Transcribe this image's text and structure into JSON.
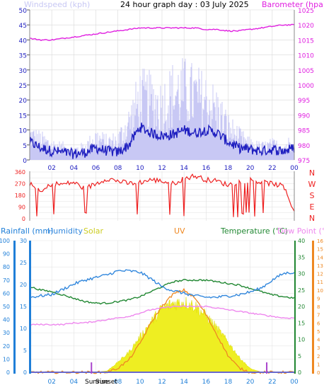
{
  "header": {
    "title": "24 hour graph day : 03 July 2025",
    "windspeed_label": "Windspeed (kph)",
    "barometer_label": "Barometer (hpa)"
  },
  "legend2": {
    "rainfall": "Rainfall (mm)",
    "humidity": "Humidity",
    "solar": "Solar",
    "uv": "UV",
    "temperature": "Temperature (°C)",
    "dewpoint": "Dew Point (°C)"
  },
  "sun": {
    "sunrise": "Sunrise",
    "sunset": "Sunset"
  },
  "colors": {
    "wind_avg": "#2020c0",
    "wind_gust": "#c8c8f4",
    "barometer": "#e020e0",
    "direction": "#ee2020",
    "humidity": "#3388dd",
    "solar_fill": "#eeee22",
    "uv": "#ee8822",
    "temperature": "#228833",
    "dewpoint": "#ee88ee",
    "rain_axis": "#1f7fd8",
    "marker": "#aa44cc"
  },
  "chart_data": [
    {
      "type": "line",
      "title": "24 hour graph day : 03 July 2025",
      "x_ticks": [
        "02",
        "04",
        "06",
        "08",
        "10",
        "12",
        "14",
        "16",
        "18",
        "20",
        "22",
        "00"
      ],
      "ylabel_left": "Windspeed (kph)",
      "ylim_left": [
        0,
        50
      ],
      "ticks_left": [
        "0",
        "5",
        "10",
        "15",
        "20",
        "25",
        "30",
        "35",
        "40",
        "45",
        "50"
      ],
      "ylabel_right": "Barometer (hpa)",
      "ylim_right": [
        975,
        1025
      ],
      "ticks_right": [
        "975",
        "980",
        "985",
        "990",
        "995",
        "1000",
        "1005",
        "1010",
        "1015",
        "1020",
        "1025"
      ],
      "x": [
        0,
        1,
        2,
        3,
        4,
        5,
        6,
        7,
        8,
        9,
        10,
        11,
        12,
        13,
        14,
        15,
        16,
        17,
        18,
        19,
        20,
        21,
        22,
        23,
        24
      ],
      "series": [
        {
          "name": "Windspeed",
          "axis": "left",
          "values": [
            6,
            4,
            3,
            2.5,
            2,
            2.5,
            4,
            3,
            2.5,
            5,
            11,
            9,
            8,
            8.5,
            10,
            9,
            10,
            9,
            6,
            4,
            3.5,
            3,
            3.5,
            3,
            4
          ]
        },
        {
          "name": "Gust",
          "axis": "left",
          "values": [
            10,
            8,
            6,
            5,
            4,
            5,
            9,
            7,
            8,
            15,
            25,
            24,
            22,
            27,
            28,
            26,
            24,
            20,
            13,
            9,
            6,
            5,
            6,
            5,
            8
          ]
        },
        {
          "name": "Barometer",
          "axis": "right",
          "values": [
            1015.5,
            1015,
            1015,
            1015.5,
            1016,
            1016.5,
            1017,
            1017.5,
            1018,
            1018.5,
            1019,
            1019,
            1019,
            1019,
            1019,
            1019,
            1018.5,
            1018.5,
            1018,
            1018,
            1018.5,
            1019,
            1019.5,
            1020,
            1020
          ]
        }
      ]
    },
    {
      "type": "line",
      "x_ticks": [
        "02",
        "04",
        "06",
        "08",
        "10",
        "12",
        "14",
        "16",
        "18",
        "20",
        "22",
        "00"
      ],
      "ylim": [
        0,
        360
      ],
      "ticks": [
        "0",
        "45",
        "90",
        "135",
        "180",
        "225",
        "270",
        "315",
        "360"
      ],
      "direction_labels": [
        "N",
        "W",
        "S",
        "E",
        "N"
      ],
      "series": [
        {
          "name": "Wind direction",
          "values": [
            270,
            200,
            270,
            265,
            280,
            230,
            270,
            310,
            290,
            270,
            280,
            300,
            290,
            270,
            310,
            330,
            300,
            290,
            260,
            285,
            300,
            280,
            270,
            250,
            60
          ]
        }
      ]
    },
    {
      "type": "line",
      "x_ticks": [
        "02",
        "04",
        "06",
        "08",
        "10",
        "12",
        "14",
        "16",
        "18",
        "20",
        "22",
        "00"
      ],
      "ylabel_rainfall": "Rainfall (mm)",
      "ylabel_humidity": "Humidity",
      "ylim_humidity": [
        0,
        100
      ],
      "ticks_humidity": [
        "0",
        "10",
        "20",
        "30",
        "40",
        "50",
        "60",
        "70",
        "80",
        "90",
        "100"
      ],
      "ylim_rainfall": [
        0,
        30
      ],
      "ticks_rainfall": [
        "0",
        "5",
        "10",
        "15",
        "20",
        "25",
        "30"
      ],
      "ylim_temperature": [
        0,
        40
      ],
      "ticks_temperature": [
        "0",
        "5",
        "10",
        "15",
        "20",
        "25",
        "30",
        "35",
        "40"
      ],
      "ylim_uv": [
        0,
        16
      ],
      "ticks_uv": [
        "0",
        "1",
        "2",
        "3",
        "4",
        "5",
        "6",
        "7",
        "8",
        "9",
        "10",
        "11",
        "12",
        "13",
        "14",
        "15",
        "16"
      ],
      "x": [
        0,
        1,
        2,
        3,
        4,
        5,
        6,
        7,
        8,
        9,
        10,
        11,
        12,
        13,
        14,
        15,
        16,
        17,
        18,
        19,
        20,
        21,
        22,
        23,
        24
      ],
      "series": [
        {
          "name": "Humidity",
          "values": [
            57,
            58,
            59,
            63,
            67,
            70,
            72,
            74,
            77,
            77,
            76,
            71,
            65,
            62,
            60,
            58,
            57,
            57,
            58,
            59,
            61,
            64,
            70,
            75,
            76
          ]
        },
        {
          "name": "Temperature",
          "values": [
            26,
            25,
            24.5,
            23.5,
            22.5,
            21.5,
            21,
            21,
            21.5,
            22,
            23,
            24.5,
            26,
            27.5,
            28,
            28,
            28,
            27.5,
            27,
            26.5,
            25.5,
            24.5,
            23.5,
            23,
            22.5
          ]
        },
        {
          "name": "Dew Point",
          "values": [
            14.5,
            14.5,
            14.5,
            14.5,
            15,
            15,
            15.5,
            16,
            16.5,
            17,
            18,
            19,
            19.5,
            20,
            20,
            20,
            20,
            19.5,
            19,
            18.5,
            18,
            17.5,
            17,
            16.5,
            16.5
          ]
        },
        {
          "name": "Solar",
          "values": [
            0,
            0,
            0,
            0,
            0,
            0,
            0,
            1,
            8,
            16,
            28,
            40,
            51,
            55,
            56,
            53,
            45,
            35,
            24,
            12,
            3,
            0,
            0,
            0,
            0
          ]
        },
        {
          "name": "UV",
          "values": [
            0,
            0,
            0,
            0,
            0,
            0,
            0,
            0,
            0.5,
            1.5,
            3.5,
            6,
            8,
            9.5,
            10,
            9,
            7,
            4.5,
            2,
            0.5,
            0,
            0,
            0,
            0,
            0
          ]
        },
        {
          "name": "Rainfall",
          "values": [
            0,
            0,
            0,
            0,
            0,
            0,
            0,
            0,
            0,
            0,
            0,
            0,
            0,
            0,
            0,
            0,
            0,
            0,
            0,
            0,
            0,
            0,
            0,
            0,
            0
          ]
        }
      ],
      "sunrise_hour": 5.6,
      "sunset_hour": 21.5
    }
  ]
}
